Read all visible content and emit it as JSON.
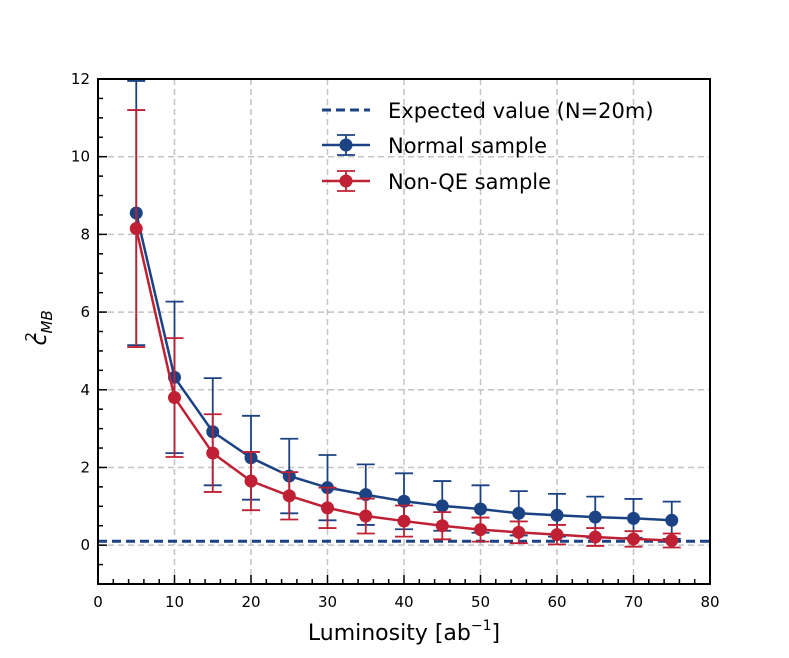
{
  "chart_data": {
    "type": "line",
    "title": "",
    "xlabel": "Luminosity [ab",
    "xlabel_sup": "−1",
    "xlabel_close": "]",
    "ylabel_base": "c",
    "ylabel_sup": "2",
    "ylabel_sub": "MB",
    "xlim": [
      0,
      80
    ],
    "ylim": [
      -1,
      12
    ],
    "xticks": [
      0,
      10,
      20,
      30,
      40,
      50,
      60,
      70,
      80
    ],
    "yticks": [
      0,
      2,
      4,
      6,
      8,
      10,
      12
    ],
    "grid": true,
    "legend_position": "top-right",
    "x": [
      5,
      10,
      15,
      20,
      25,
      30,
      35,
      40,
      45,
      50,
      55,
      60,
      65,
      70,
      75
    ],
    "series": [
      {
        "name": "Normal sample",
        "color": "#1b4383",
        "values": [
          8.55,
          4.32,
          2.92,
          2.25,
          1.78,
          1.48,
          1.3,
          1.13,
          1.01,
          0.93,
          0.82,
          0.77,
          0.72,
          0.69,
          0.64
        ],
        "errors": [
          3.4,
          1.95,
          1.38,
          1.08,
          0.96,
          0.84,
          0.78,
          0.72,
          0.64,
          0.61,
          0.57,
          0.55,
          0.53,
          0.5,
          0.48
        ]
      },
      {
        "name": "Non-QE sample",
        "color": "#bf2033",
        "values": [
          8.15,
          3.8,
          2.37,
          1.65,
          1.27,
          0.96,
          0.75,
          0.62,
          0.5,
          0.4,
          0.33,
          0.27,
          0.21,
          0.16,
          0.12
        ],
        "errors": [
          3.05,
          1.53,
          1.0,
          0.75,
          0.61,
          0.52,
          0.45,
          0.4,
          0.35,
          0.31,
          0.28,
          0.25,
          0.23,
          0.2,
          0.18
        ]
      }
    ],
    "reference_lines": [
      {
        "name": "Expected value (N=20m)",
        "y": 0.1,
        "color": "#1b4383",
        "style": "dashed"
      }
    ]
  }
}
